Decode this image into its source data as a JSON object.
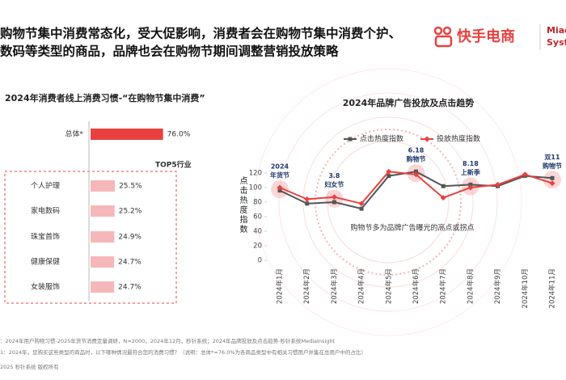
{
  "header": {
    "title_lines": [
      "购物节集中消费常态化，受大促影响，消费者会在购物节集中消费个护、",
      "数码等类型的商品，品牌也会在购物节期间调整营销投放策略"
    ]
  },
  "logo": {
    "brand": "快手电商",
    "partner_lines": [
      "Miao",
      "Syste"
    ]
  },
  "chart_data": [
    {
      "type": "bar",
      "orientation": "horizontal",
      "title": "2024年消费者线上消费习惯-“在购物节集中消费”",
      "categories": [
        "总体*",
        "个人护理",
        "家电数码",
        "珠宝首饰",
        "健康保健",
        "女装服饰"
      ],
      "values": [
        76.0,
        25.5,
        25.2,
        24.9,
        24.7,
        24.7
      ],
      "value_labels": [
        "76.0%",
        "25.5%",
        "25.2%",
        "24.9%",
        "24.7%",
        "24.7%"
      ],
      "colors": [
        "#e8413f",
        "#f5b8ba",
        "#f5b8ba",
        "#f5b8ba",
        "#f5b8ba",
        "#f5b8ba"
      ],
      "group_label": "TOP5行业",
      "xlim": [
        0,
        100
      ]
    },
    {
      "type": "line",
      "title": "2024年品牌广告投放及点击趋势",
      "y_label": "点击热度指数",
      "categories": [
        "2024年1月",
        "2024年2月",
        "2024年3月",
        "2024年4月",
        "2024年5月",
        "2024年6月",
        "2024年7月",
        "2024年8月",
        "2024年9月",
        "2024年10月",
        "2024年11月"
      ],
      "series": [
        {
          "name": "点击热度指数",
          "color": "#555555",
          "marker": "square",
          "values": [
            96,
            78,
            80,
            71,
            116,
            122,
            102,
            104,
            102,
            116,
            113
          ]
        },
        {
          "name": "投放热度指数",
          "color": "#e8413f",
          "marker": "diamond",
          "values": [
            100,
            84,
            87,
            78,
            122,
            118,
            86,
            100,
            104,
            118,
            106
          ]
        }
      ],
      "ylim": [
        0,
        120
      ],
      "yticks": [
        0,
        20,
        40,
        60,
        80,
        100,
        120
      ],
      "grid": false,
      "annotations": [
        {
          "x": "2024年1月",
          "lines": [
            "2024",
            "年货节"
          ]
        },
        {
          "x": "2024年3月",
          "lines": [
            "3.8",
            "妇女节"
          ]
        },
        {
          "x": "2024年6月",
          "lines": [
            "6.18",
            "购物节"
          ]
        },
        {
          "x": "2024年8月",
          "lines": [
            "8.18",
            "上新季"
          ]
        },
        {
          "x": "2024年11月",
          "lines": [
            "双11",
            "购物节"
          ]
        }
      ],
      "note": "购物节多为品牌广告曝光的高点或拐点"
    }
  ],
  "footer": {
    "notes": [
      "：2024年用户购物习惯-2025年货节消费定量调研，N=2000，2024年12月，秒针系统；2024年品牌投放及点击趋势-秒针系统MediaInsight",
      "1：2024年，您购买这些类型的商品时，以下哪种情况最符合您的消费习惯？（说明：总体*=76.0%为各商品类型中有相关习惯用户并集在总用户中的占比）"
    ],
    "copyright": "2025 秒针系统 版权所有"
  }
}
